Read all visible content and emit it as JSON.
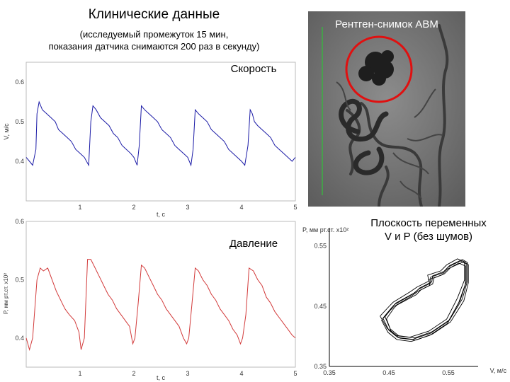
{
  "header": {
    "title": "Клинические данные",
    "subtitle": "(исследуемый промежуток 15 мин,\nпоказания датчика снимаются 200 раз в секунду)"
  },
  "xray": {
    "caption": "Рентген-снимок АВМ"
  },
  "phase": {
    "caption": "Плоскость переменных\nV и P (без шумов)"
  },
  "colors": {
    "velocity": "#1a1aa6",
    "pressure": "#d23a3a",
    "phase": "#000000",
    "circle": "#e01010",
    "scale_bar": "#3cb043"
  },
  "chart_data": [
    {
      "type": "line",
      "title": "Скорость",
      "xlabel": "t, c",
      "ylabel": "V, м/с",
      "xlim": [
        0,
        5
      ],
      "ylim": [
        0.3,
        0.65
      ],
      "xticks": [
        "1",
        "2",
        "3",
        "4",
        "5"
      ],
      "yticks": [
        "0.4",
        "0.5",
        "0.6"
      ],
      "series": [
        {
          "x": [
            0,
            0.06,
            0.12,
            0.18,
            0.2,
            0.24,
            0.3,
            0.38,
            0.46,
            0.54,
            0.6,
            0.68,
            0.76,
            0.84,
            0.92,
            1.0,
            1.08,
            1.16,
            1.2,
            1.24,
            1.3,
            1.38,
            1.46,
            1.54,
            1.62,
            1.7,
            1.78,
            1.86,
            1.94,
            2.0,
            2.06,
            2.1,
            2.14,
            2.2,
            2.28,
            2.36,
            2.44,
            2.52,
            2.6,
            2.68,
            2.76,
            2.84,
            2.92,
            3.0,
            3.06,
            3.1,
            3.14,
            3.2,
            3.28,
            3.36,
            3.44,
            3.52,
            3.6,
            3.68,
            3.76,
            3.84,
            3.92,
            4.0,
            4.06,
            4.12,
            4.16,
            4.2,
            4.24,
            4.3,
            4.38,
            4.46,
            4.54,
            4.62,
            4.7,
            4.78,
            4.86,
            4.94,
            5.0
          ],
          "y": [
            0.41,
            0.4,
            0.39,
            0.43,
            0.52,
            0.55,
            0.53,
            0.52,
            0.51,
            0.5,
            0.48,
            0.47,
            0.46,
            0.45,
            0.43,
            0.42,
            0.41,
            0.39,
            0.5,
            0.54,
            0.53,
            0.51,
            0.5,
            0.49,
            0.47,
            0.46,
            0.44,
            0.43,
            0.42,
            0.41,
            0.39,
            0.44,
            0.54,
            0.53,
            0.52,
            0.51,
            0.5,
            0.48,
            0.47,
            0.46,
            0.44,
            0.43,
            0.42,
            0.41,
            0.39,
            0.43,
            0.53,
            0.52,
            0.51,
            0.5,
            0.48,
            0.47,
            0.46,
            0.45,
            0.43,
            0.42,
            0.41,
            0.4,
            0.39,
            0.44,
            0.53,
            0.52,
            0.5,
            0.49,
            0.48,
            0.47,
            0.46,
            0.44,
            0.43,
            0.42,
            0.41,
            0.4,
            0.41
          ]
        }
      ]
    },
    {
      "type": "line",
      "title": "Давление",
      "xlabel": "t, c",
      "ylabel": "P, мм рт.ст. x10²",
      "xlim": [
        0,
        5
      ],
      "ylim": [
        0.35,
        0.6
      ],
      "xticks": [
        "1",
        "2",
        "3",
        "4",
        "5"
      ],
      "yticks": [
        "0.4",
        "0.5",
        "0.6"
      ],
      "series": [
        {
          "x": [
            0,
            0.06,
            0.12,
            0.2,
            0.26,
            0.32,
            0.4,
            0.48,
            0.56,
            0.64,
            0.72,
            0.8,
            0.9,
            0.98,
            1.02,
            1.08,
            1.14,
            1.2,
            1.28,
            1.36,
            1.44,
            1.52,
            1.6,
            1.68,
            1.76,
            1.84,
            1.92,
            1.98,
            2.02,
            2.08,
            2.14,
            2.2,
            2.28,
            2.36,
            2.44,
            2.52,
            2.6,
            2.68,
            2.76,
            2.84,
            2.92,
            2.98,
            3.02,
            3.08,
            3.14,
            3.2,
            3.28,
            3.36,
            3.44,
            3.52,
            3.6,
            3.68,
            3.76,
            3.84,
            3.92,
            3.98,
            4.02,
            4.08,
            4.14,
            4.22,
            4.3,
            4.38,
            4.46,
            4.54,
            4.62,
            4.7,
            4.78,
            4.86,
            4.94,
            5.0
          ],
          "y": [
            0.4,
            0.38,
            0.4,
            0.5,
            0.52,
            0.515,
            0.52,
            0.5,
            0.48,
            0.465,
            0.45,
            0.44,
            0.43,
            0.41,
            0.38,
            0.4,
            0.535,
            0.535,
            0.52,
            0.505,
            0.49,
            0.475,
            0.465,
            0.45,
            0.44,
            0.43,
            0.42,
            0.39,
            0.4,
            0.46,
            0.525,
            0.52,
            0.505,
            0.49,
            0.475,
            0.465,
            0.45,
            0.44,
            0.43,
            0.42,
            0.4,
            0.39,
            0.4,
            0.46,
            0.52,
            0.515,
            0.5,
            0.49,
            0.475,
            0.465,
            0.45,
            0.44,
            0.43,
            0.415,
            0.405,
            0.39,
            0.4,
            0.44,
            0.52,
            0.515,
            0.5,
            0.49,
            0.47,
            0.46,
            0.445,
            0.435,
            0.425,
            0.415,
            0.405,
            0.4
          ]
        }
      ]
    },
    {
      "type": "line",
      "title": "",
      "xlabel": "V, м/с",
      "ylabel": "P, мм рт.ст. x10²",
      "xlim": [
        0.35,
        0.6
      ],
      "ylim": [
        0.35,
        0.58
      ],
      "xticks": [
        "0.35",
        "0.45",
        "0.55"
      ],
      "yticks": [
        "0.35",
        "0.45",
        "0.55"
      ],
      "series": [
        {
          "x": [
            0.44,
            0.455,
            0.46,
            0.49,
            0.5,
            0.52,
            0.52,
            0.54,
            0.55,
            0.57,
            0.58,
            0.58,
            0.57,
            0.55,
            0.52,
            0.49,
            0.465,
            0.45,
            0.44
          ],
          "y": [
            0.43,
            0.448,
            0.453,
            0.47,
            0.478,
            0.488,
            0.498,
            0.505,
            0.515,
            0.525,
            0.52,
            0.49,
            0.46,
            0.425,
            0.405,
            0.395,
            0.398,
            0.41,
            0.43
          ]
        }
      ]
    }
  ]
}
